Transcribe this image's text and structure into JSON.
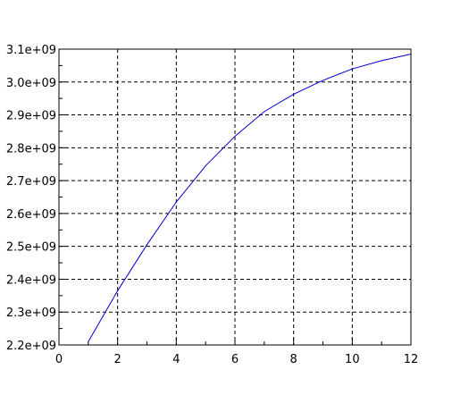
{
  "chart_data": {
    "type": "line",
    "title": "",
    "xlabel": "",
    "ylabel": "",
    "xlim": [
      0,
      12
    ],
    "ylim": [
      2200000000,
      3100000000
    ],
    "grid": true,
    "grid_style": "dashed",
    "x_ticks": [
      0,
      2,
      4,
      6,
      8,
      10,
      12
    ],
    "x_tick_labels": [
      "0",
      "2",
      "4",
      "6",
      "8",
      "10",
      "12"
    ],
    "y_ticks": [
      2200000000,
      2300000000,
      2400000000,
      2500000000,
      2600000000,
      2700000000,
      2800000000,
      2900000000,
      3000000000,
      3100000000
    ],
    "y_tick_labels": [
      "2.2e+09",
      "2.3e+09",
      "2.4e+09",
      "2.5e+09",
      "2.6e+09",
      "2.7e+09",
      "2.8e+09",
      "2.9e+09",
      "3.0e+09",
      "3.1e+09"
    ],
    "series": [
      {
        "color": "#0000cc",
        "x": [
          1,
          2,
          3,
          4,
          5,
          6,
          7,
          8,
          9,
          10,
          11,
          12
        ],
        "y": [
          2210000000,
          2365000000,
          2505000000,
          2635000000,
          2745000000,
          2835000000,
          2910000000,
          2963000000,
          3005000000,
          3040000000,
          3065000000,
          3085000000
        ]
      }
    ]
  }
}
